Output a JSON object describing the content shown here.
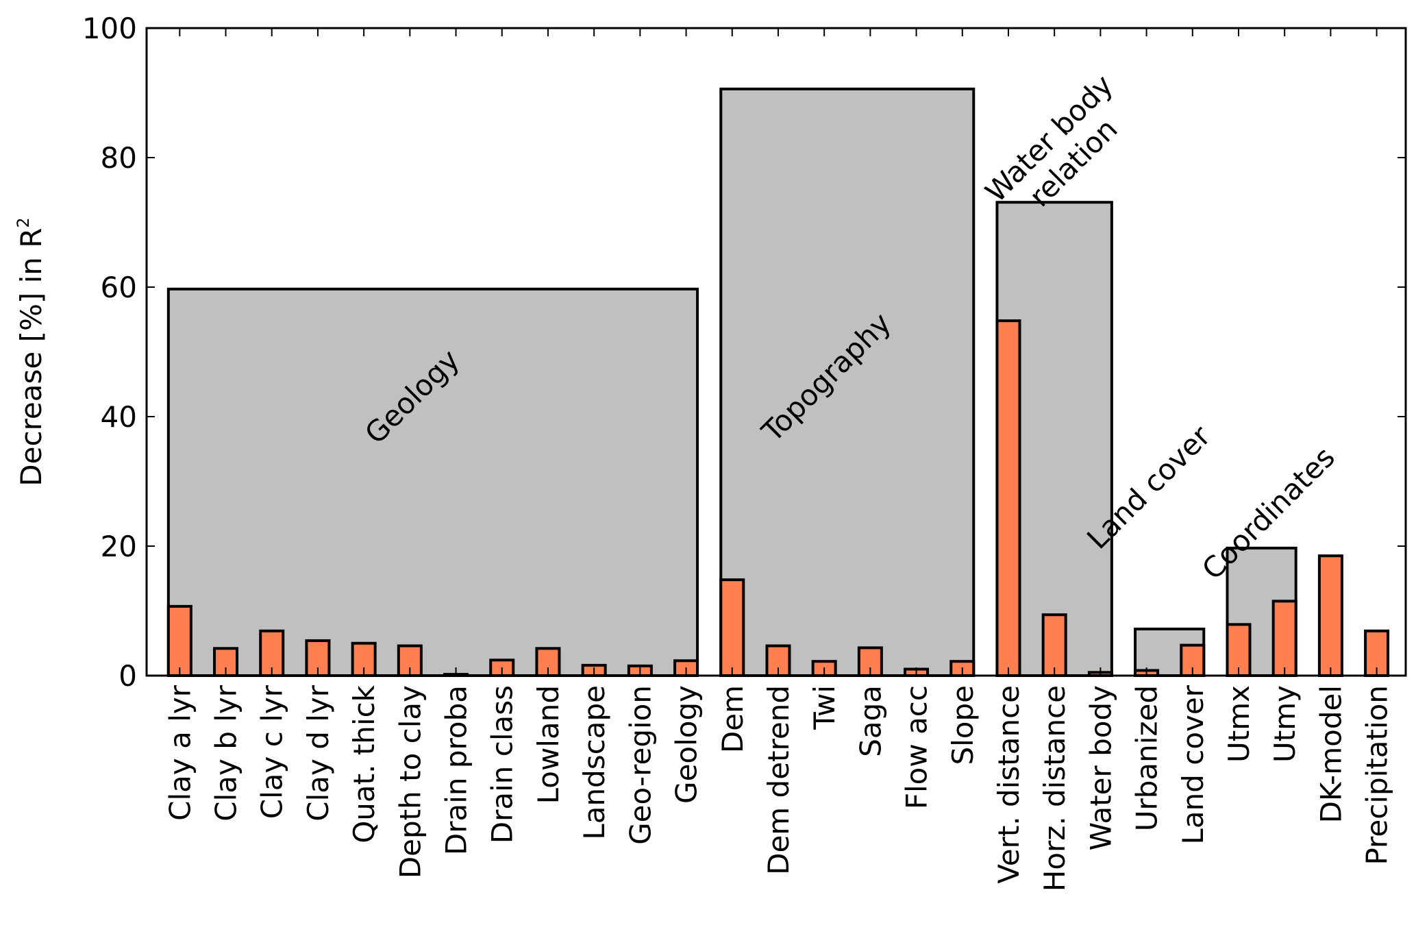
{
  "chart_data": {
    "type": "bar",
    "title": "",
    "xlabel": "",
    "ylabel": "Decrease [%] in R",
    "ylabel_superscript": "2",
    "ylim": [
      0,
      100
    ],
    "yticks": [
      0,
      20,
      40,
      60,
      80,
      100
    ],
    "grid": false,
    "colors": {
      "bar_fill": "#ff7f50",
      "group_fill": "#c0c0c0",
      "outline": "#000000"
    },
    "categories": [
      "Clay a lyr",
      "Clay b lyr",
      "Clay c lyr",
      "Clay d lyr",
      "Quat. thick",
      "Depth to clay",
      "Drain proba",
      "Drain class",
      "Lowland",
      "Landscape",
      "Geo-region",
      "Geology",
      "Dem",
      "Dem detrend",
      "Twi",
      "Saga",
      "Flow acc",
      "Slope",
      "Vert. distance",
      "Horz. distance",
      "Water body",
      "Urbanized",
      "Land cover",
      "Utmx",
      "Utmy",
      "DK-model",
      "Precipitation"
    ],
    "values": [
      10.7,
      4.2,
      6.9,
      5.4,
      5.0,
      4.6,
      0.2,
      2.4,
      4.2,
      1.6,
      1.5,
      2.3,
      14.8,
      4.6,
      2.2,
      4.3,
      1.0,
      2.2,
      54.8,
      9.4,
      0.5,
      0.8,
      4.7,
      7.9,
      11.5,
      18.5,
      6.9
    ],
    "groups": [
      {
        "label": "Geology",
        "value": 59.7,
        "first": 0,
        "last": 11
      },
      {
        "label": "Topography",
        "value": 90.6,
        "first": 12,
        "last": 17
      },
      {
        "label": "Water body\nrelation",
        "value": 73.1,
        "first": 18,
        "last": 20
      },
      {
        "label": "Land cover",
        "value": 7.2,
        "first": 21,
        "last": 22
      },
      {
        "label": "Coordinates",
        "value": 19.7,
        "first": 23,
        "last": 24
      }
    ]
  }
}
